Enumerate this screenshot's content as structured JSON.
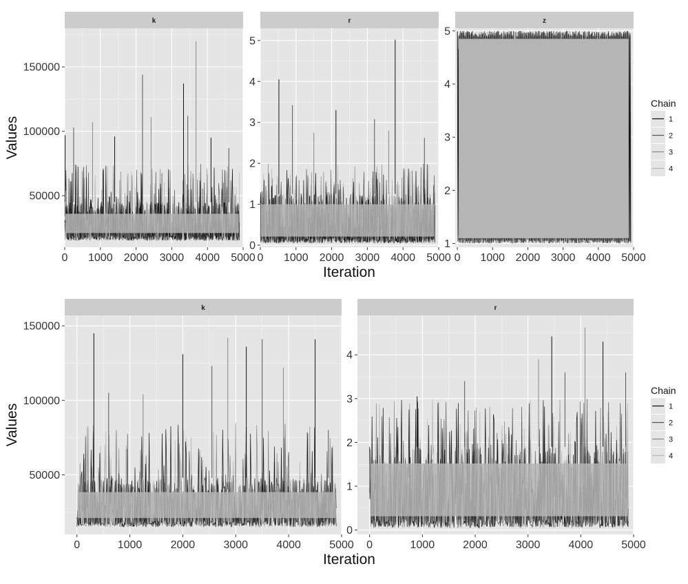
{
  "colors": {
    "panel_bg": "#e5e5e5",
    "strip_bg": "#cccccc",
    "grid_major": "#ffffff",
    "chain_1": "#111111",
    "chain_2": "#555555",
    "chain_3": "#888888",
    "chain_4": "#b5b5b5",
    "legend_key_bg": "#e5e5e5"
  },
  "chart_data": [
    {
      "type": "line",
      "chart": "trace-plot",
      "xlabel": "Iteration",
      "ylabel": "Values",
      "legend": {
        "title": "Chain",
        "placement": "right",
        "entries": [
          "1",
          "2",
          "3",
          "4"
        ]
      },
      "grid": true,
      "panels": [
        {
          "facet": "k",
          "xlim": [
            0,
            5000
          ],
          "ylim": [
            10000,
            180000
          ],
          "x_ticks": [
            0,
            1000,
            2000,
            3000,
            4000,
            5000
          ],
          "x_tick_labels": [
            "0",
            "1000",
            "2000",
            "3000",
            "4000",
            "5000"
          ],
          "y_ticks": [
            50000,
            100000,
            150000
          ],
          "y_tick_labels": [
            "50000",
            "100000",
            "150000"
          ],
          "iterations": [
            0,
            4900
          ],
          "trace": {
            "floor": 15000,
            "typical_low": 20000,
            "typical_high": 45000,
            "spike_high": 75000
          },
          "spikes": [
            {
              "x": 10,
              "y": 97000
            },
            {
              "x": 250,
              "y": 103000
            },
            {
              "x": 780,
              "y": 107000
            },
            {
              "x": 1400,
              "y": 96000
            },
            {
              "x": 2180,
              "y": 144000
            },
            {
              "x": 2420,
              "y": 111000
            },
            {
              "x": 3330,
              "y": 137000
            },
            {
              "x": 3450,
              "y": 112000
            },
            {
              "x": 3680,
              "y": 170000
            },
            {
              "x": 4100,
              "y": 95000
            },
            {
              "x": 4600,
              "y": 87000
            }
          ]
        },
        {
          "facet": "r",
          "xlim": [
            0,
            5000
          ],
          "ylim": [
            -0.05,
            5.3
          ],
          "x_ticks": [
            0,
            1000,
            2000,
            3000,
            4000,
            5000
          ],
          "x_tick_labels": [
            "0",
            "1000",
            "2000",
            "3000",
            "4000",
            "5000"
          ],
          "y_ticks": [
            0,
            1,
            2,
            3,
            4,
            5
          ],
          "y_tick_labels": [
            "0",
            "1",
            "2",
            "3",
            "4",
            "5"
          ],
          "iterations": [
            0,
            4900
          ],
          "trace": {
            "floor": 0.05,
            "typical_low": 0.2,
            "typical_high": 1.25,
            "spike_high": 2.0
          },
          "spikes": [
            {
              "x": 520,
              "y": 4.05
            },
            {
              "x": 900,
              "y": 3.42
            },
            {
              "x": 1500,
              "y": 2.75
            },
            {
              "x": 2120,
              "y": 3.3
            },
            {
              "x": 3200,
              "y": 3.08
            },
            {
              "x": 3600,
              "y": 2.8
            },
            {
              "x": 3780,
              "y": 5.02
            },
            {
              "x": 4600,
              "y": 2.62
            }
          ]
        },
        {
          "facet": "z",
          "xlim": [
            -60,
            5000
          ],
          "ylim": [
            0.93,
            5.05
          ],
          "x_ticks": [
            0,
            1000,
            2000,
            3000,
            4000,
            5000
          ],
          "x_tick_labels": [
            "0",
            "1000",
            "2000",
            "3000",
            "4000",
            "5000"
          ],
          "y_ticks": [
            1,
            2,
            3,
            4,
            5
          ],
          "y_tick_labels": [
            "1",
            "2",
            "3",
            "4",
            "5"
          ],
          "iterations": [
            0,
            4900
          ],
          "trace": {
            "type": "band",
            "low": 1.0,
            "high": 5.0
          }
        }
      ]
    },
    {
      "type": "line",
      "chart": "trace-plot",
      "xlabel": "Iteration",
      "ylabel": "Values",
      "legend": {
        "title": "Chain",
        "placement": "right",
        "entries": [
          "1",
          "2",
          "3",
          "4"
        ]
      },
      "grid": true,
      "panels": [
        {
          "facet": "k",
          "xlim": [
            -230,
            5000
          ],
          "ylim": [
            10000,
            157000
          ],
          "x_ticks": [
            0,
            1000,
            2000,
            3000,
            4000,
            5000
          ],
          "x_tick_labels": [
            "0",
            "1000",
            "2000",
            "3000",
            "4000",
            "5000"
          ],
          "y_ticks": [
            50000,
            100000,
            150000
          ],
          "y_tick_labels": [
            "50000",
            "100000",
            "150000"
          ],
          "iterations": [
            0,
            4900
          ],
          "trace": {
            "floor": 15000,
            "typical_low": 20000,
            "typical_high": 48000,
            "spike_high": 85000
          },
          "spikes": [
            {
              "x": 320,
              "y": 145000
            },
            {
              "x": 600,
              "y": 105000
            },
            {
              "x": 1250,
              "y": 104000
            },
            {
              "x": 2000,
              "y": 131000
            },
            {
              "x": 2550,
              "y": 123000
            },
            {
              "x": 2850,
              "y": 142000
            },
            {
              "x": 3200,
              "y": 136000
            },
            {
              "x": 3500,
              "y": 141000
            },
            {
              "x": 3900,
              "y": 122000
            },
            {
              "x": 4500,
              "y": 141000
            },
            {
              "x": 4750,
              "y": 80000
            }
          ]
        },
        {
          "facet": "r",
          "xlim": [
            -230,
            5000
          ],
          "ylim": [
            -0.1,
            4.9
          ],
          "x_ticks": [
            0,
            1000,
            2000,
            3000,
            4000,
            5000
          ],
          "x_tick_labels": [
            "0",
            "1000",
            "2000",
            "3000",
            "4000",
            "5000"
          ],
          "y_ticks": [
            0,
            1,
            2,
            3,
            4
          ],
          "y_tick_labels": [
            "0",
            "1",
            "2",
            "3",
            "4"
          ],
          "iterations": [
            0,
            4900
          ],
          "trace": {
            "floor": 0.05,
            "typical_low": 0.3,
            "typical_high": 1.9,
            "spike_high": 3.0
          },
          "spikes": [
            {
              "x": 900,
              "y": 3.05
            },
            {
              "x": 1800,
              "y": 3.4
            },
            {
              "x": 3200,
              "y": 3.9
            },
            {
              "x": 3450,
              "y": 4.42
            },
            {
              "x": 3700,
              "y": 3.6
            },
            {
              "x": 4080,
              "y": 4.62
            },
            {
              "x": 4420,
              "y": 4.3
            },
            {
              "x": 4850,
              "y": 3.6
            }
          ]
        }
      ]
    }
  ]
}
